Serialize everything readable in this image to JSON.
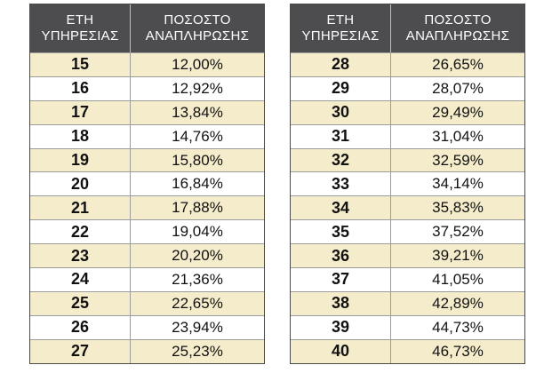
{
  "headers": {
    "years_line1": "ΕΤΗ",
    "years_line2": "ΥΠΗΡΕΣΙΑΣ",
    "pct_line1": "ΠΟΣΟΣΤΟ",
    "pct_line2": "ΑΝΑΠΛΗΡΩΣΗΣ"
  },
  "left_rows": [
    {
      "years": "15",
      "pct": "12,00%"
    },
    {
      "years": "16",
      "pct": "12,92%"
    },
    {
      "years": "17",
      "pct": "13,84%"
    },
    {
      "years": "18",
      "pct": "14,76%"
    },
    {
      "years": "19",
      "pct": "15,80%"
    },
    {
      "years": "20",
      "pct": "16,84%"
    },
    {
      "years": "21",
      "pct": "17,88%"
    },
    {
      "years": "22",
      "pct": "19,04%"
    },
    {
      "years": "23",
      "pct": "20,20%"
    },
    {
      "years": "24",
      "pct": "21,36%"
    },
    {
      "years": "25",
      "pct": "22,65%"
    },
    {
      "years": "26",
      "pct": "23,94%"
    },
    {
      "years": "27",
      "pct": "25,23%"
    }
  ],
  "right_rows": [
    {
      "years": "28",
      "pct": "26,65%"
    },
    {
      "years": "29",
      "pct": "28,07%"
    },
    {
      "years": "30",
      "pct": "29,49%"
    },
    {
      "years": "31",
      "pct": "31,04%"
    },
    {
      "years": "32",
      "pct": "32,59%"
    },
    {
      "years": "33",
      "pct": "34,14%"
    },
    {
      "years": "34",
      "pct": "35,83%"
    },
    {
      "years": "35",
      "pct": "37,52%"
    },
    {
      "years": "36",
      "pct": "39,21%"
    },
    {
      "years": "37",
      "pct": "41,05%"
    },
    {
      "years": "38",
      "pct": "42,89%"
    },
    {
      "years": "39",
      "pct": "44,73%"
    },
    {
      "years": "40",
      "pct": "46,73%"
    }
  ],
  "colors": {
    "header_bg": "#4d4d4f",
    "stripe": "#f4eccb",
    "border": "#4a4a4a"
  }
}
